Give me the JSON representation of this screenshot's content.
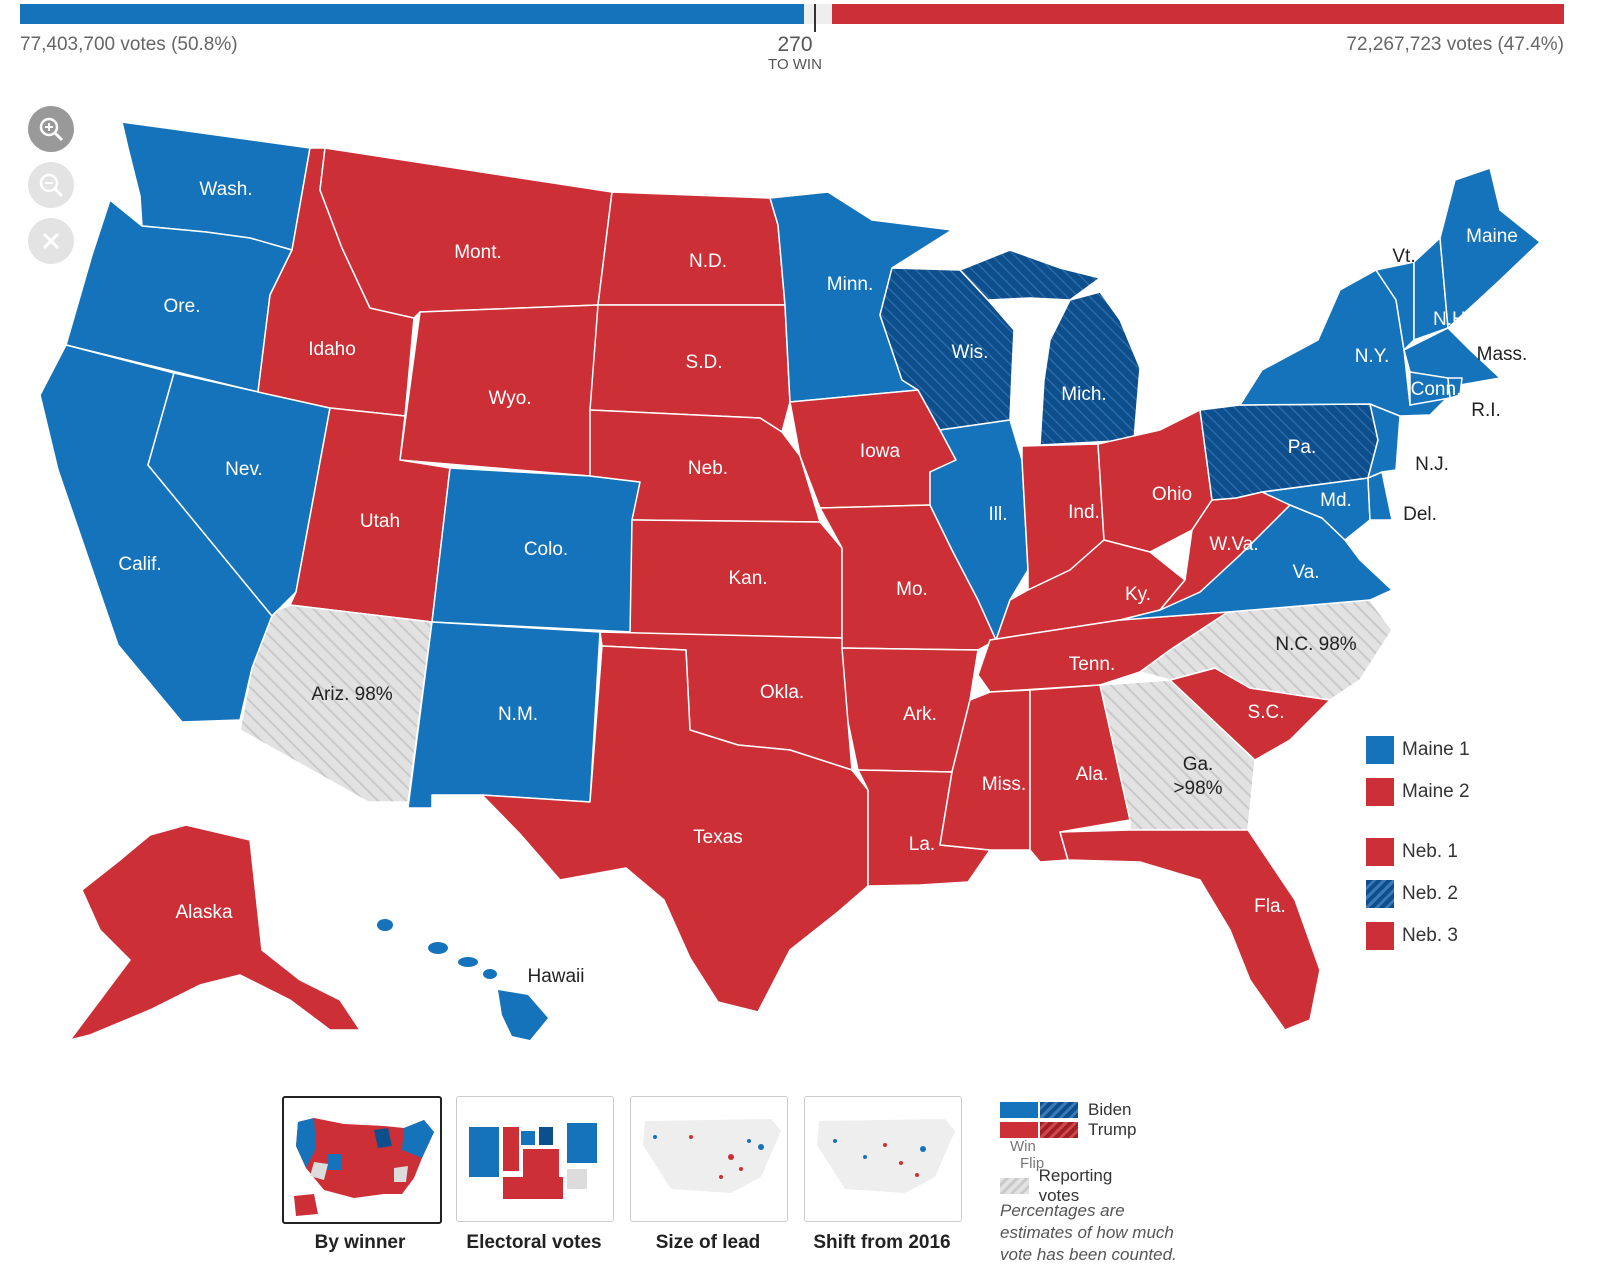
{
  "header": {
    "left_votes": "77,403,700 votes (50.8%)",
    "right_votes": "72,267,723 votes (47.4%)",
    "to_win_number": "270",
    "to_win_label": "TO WIN"
  },
  "colors": {
    "dem": "#1473ba",
    "dem_flip": "#0d4f8c",
    "rep": "#cc2f36",
    "rep_flip": "#a01f26",
    "pending": "#dcdcdc"
  },
  "bar": {
    "dem_share": 0.508,
    "rep_share": 0.474,
    "pending_share": 0.018
  },
  "zoom_controls": {
    "zoom_in_icon": "zoom-in-icon",
    "zoom_out_icon": "zoom-out-icon",
    "reset_icon": "close-icon"
  },
  "states": {
    "wash": "Wash.",
    "ore": "Ore.",
    "calif": "Calif.",
    "nev": "Nev.",
    "idaho": "Idaho",
    "mont": "Mont.",
    "wyo": "Wyo.",
    "utah": "Utah",
    "ariz": "Ariz. 98%",
    "colo": "Colo.",
    "nm": "N.M.",
    "nd": "N.D.",
    "sd": "S.D.",
    "neb": "Neb.",
    "kan": "Kan.",
    "okla": "Okla.",
    "texas": "Texas",
    "minn": "Minn.",
    "iowa": "Iowa",
    "mo": "Mo.",
    "ark": "Ark.",
    "la": "La.",
    "wis": "Wis.",
    "ill": "Ill.",
    "mich": "Mich.",
    "ind": "Ind.",
    "ohio": "Ohio",
    "ky": "Ky.",
    "tenn": "Tenn.",
    "miss": "Miss.",
    "ala": "Ala.",
    "ga_1": "Ga.",
    "ga_2": ">98%",
    "fla": "Fla.",
    "sc": "S.C.",
    "nc": "N.C. 98%",
    "va": "Va.",
    "wva": "W.Va.",
    "md": "Md.",
    "del": "Del.",
    "nj": "N.J.",
    "pa": "Pa.",
    "ny": "N.Y.",
    "vt": "Vt.",
    "nh": "N.H.",
    "maine": "Maine",
    "mass": "Mass.",
    "conn": "Conn.",
    "ri": "R.I.",
    "alaska": "Alaska",
    "hawaii": "Hawaii"
  },
  "district_legend": [
    {
      "label": "Maine 1",
      "party": "dem"
    },
    {
      "label": "Maine 2",
      "party": "rep"
    },
    {
      "label": "Neb. 1",
      "party": "rep"
    },
    {
      "label": "Neb. 2",
      "party": "dem_flip"
    },
    {
      "label": "Neb. 3",
      "party": "rep"
    }
  ],
  "view_tabs": [
    {
      "label": "By winner",
      "selected": true
    },
    {
      "label": "Electoral votes",
      "selected": false
    },
    {
      "label": "Size of lead",
      "selected": false
    },
    {
      "label": "Shift from 2016",
      "selected": false
    }
  ],
  "key": {
    "biden": "Biden",
    "trump": "Trump",
    "win": "Win",
    "flip": "Flip",
    "reporting": "Reporting votes",
    "note": "Percentages are estimates of how much vote has been counted."
  }
}
